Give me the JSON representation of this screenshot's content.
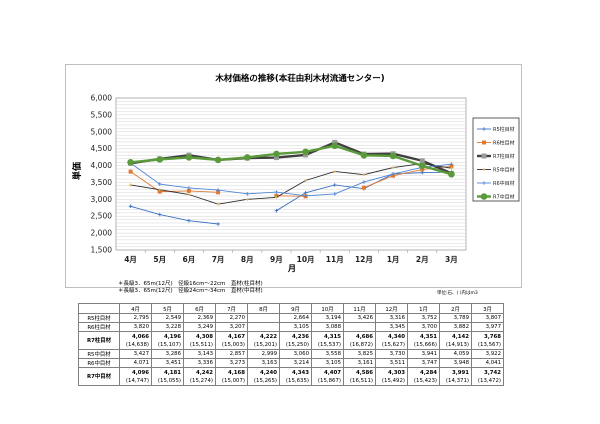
{
  "chart_data": {
    "type": "line",
    "title": "木材価格の推移(本荘由利木材流通センター)",
    "xlabel": "月",
    "ylabel": "単価",
    "ylim": [
      1500,
      6000
    ],
    "yticks": [
      "1,500",
      "2,000",
      "2,500",
      "3,000",
      "3,500",
      "4,000",
      "4,500",
      "5,000",
      "5,500",
      "6,000"
    ],
    "ytick_values": [
      1500,
      2000,
      2500,
      3000,
      3500,
      4000,
      4500,
      5000,
      5500,
      6000
    ],
    "categories": [
      "4月",
      "5月",
      "6月",
      "7月",
      "8月",
      "9月",
      "10月",
      "11月",
      "12月",
      "1月",
      "2月",
      "3月"
    ],
    "legend_position": "right",
    "series": [
      {
        "name": "R5柱目材",
        "color": "#3b73c2",
        "values": [
          2795,
          2549,
          2369,
          2270,
          null,
          2664,
          3194,
          3426,
          3316,
          3752,
          3789,
          3807
        ]
      },
      {
        "name": "R6柱目材",
        "color": "#e07a33",
        "values": [
          3820,
          3228,
          3249,
          3207,
          null,
          3105,
          3088,
          null,
          3345,
          3700,
          3882,
          3977
        ]
      },
      {
        "name": "R7柱目材",
        "color": "#404040",
        "values": [
          4066,
          4196,
          4308,
          4167,
          4222,
          4236,
          4315,
          4686,
          4340,
          4351,
          4142,
          3768
        ]
      },
      {
        "name": "R5中目材",
        "color": "#2b2b2b",
        "values": [
          3427,
          3286,
          3143,
          2857,
          2999,
          3060,
          3558,
          3825,
          3730,
          3941,
          4059,
          3922
        ]
      },
      {
        "name": "R6中目材",
        "color": "#4f86d6",
        "values": [
          4071,
          3451,
          3336,
          3273,
          3163,
          3214,
          3105,
          3161,
          3511,
          3747,
          3948,
          4041
        ]
      },
      {
        "name": "R7中目材",
        "color": "#5b9a3a",
        "values": [
          4096,
          4181,
          4242,
          4168,
          4240,
          4343,
          4407,
          4586,
          4303,
          4284,
          3991,
          3742
        ]
      }
    ]
  },
  "notes": [
    "＊長級3．65m(12尺)　径級16cm～22cm　直材(柱目材)",
    "＊長級3．65m(12尺)　径級24cm～34cm　直材(中目材)"
  ],
  "unit_note": "単位:石、( )内はm3",
  "table": {
    "headers": [
      "4月",
      "5月",
      "6月",
      "7月",
      "8月",
      "9月",
      "10月",
      "11月",
      "12月",
      "1月",
      "2月",
      "3月"
    ],
    "rows": [
      {
        "label": "R5柱目材",
        "values": [
          "2,795",
          "2,549",
          "2,369",
          "2,270",
          "",
          "2,664",
          "3,194",
          "3,426",
          "3,316",
          "3,752",
          "3,789",
          "3,807"
        ]
      },
      {
        "label": "R6柱目材",
        "values": [
          "3,820",
          "3,228",
          "3,249",
          "3,207",
          "",
          "3,105",
          "3,088",
          "",
          "3,345",
          "3,700",
          "3,882",
          "3,977"
        ]
      },
      {
        "label": "R7柱目材",
        "values": [
          "4,066",
          "4,196",
          "4,308",
          "4,167",
          "4,222",
          "4,236",
          "4,315",
          "4,686",
          "4,340",
          "4,351",
          "4,142",
          "3,768"
        ],
        "sub": [
          "(14,638)",
          "(15,107)",
          "(15,511)",
          "(15,003)",
          "(15,201)",
          "(15,250)",
          "(15,537)",
          "(16,872)",
          "(15,627)",
          "(15,666)",
          "(14,913)",
          "(13,567)"
        ]
      },
      {
        "label": "R5中目材",
        "values": [
          "3,427",
          "3,286",
          "3,143",
          "2,857",
          "2,999",
          "3,060",
          "3,558",
          "3,825",
          "3,730",
          "3,941",
          "4,059",
          "3,922"
        ]
      },
      {
        "label": "R6中目材",
        "values": [
          "4,071",
          "3,451",
          "3,336",
          "3,273",
          "3,163",
          "3,214",
          "3,105",
          "3,161",
          "3,511",
          "3,747",
          "3,948",
          "4,041"
        ]
      },
      {
        "label": "R7中目材",
        "values": [
          "4,096",
          "4,181",
          "4,242",
          "4,168",
          "4,240",
          "4,343",
          "4,407",
          "4,586",
          "4,303",
          "4,284",
          "3,991",
          "3,742"
        ],
        "sub": [
          "(14,747)",
          "(15,055)",
          "(15,274)",
          "(15,007)",
          "(15,265)",
          "(15,635)",
          "(15,867)",
          "(16,511)",
          "(15,492)",
          "(15,423)",
          "(14,371)",
          "(13,472)"
        ]
      }
    ]
  }
}
